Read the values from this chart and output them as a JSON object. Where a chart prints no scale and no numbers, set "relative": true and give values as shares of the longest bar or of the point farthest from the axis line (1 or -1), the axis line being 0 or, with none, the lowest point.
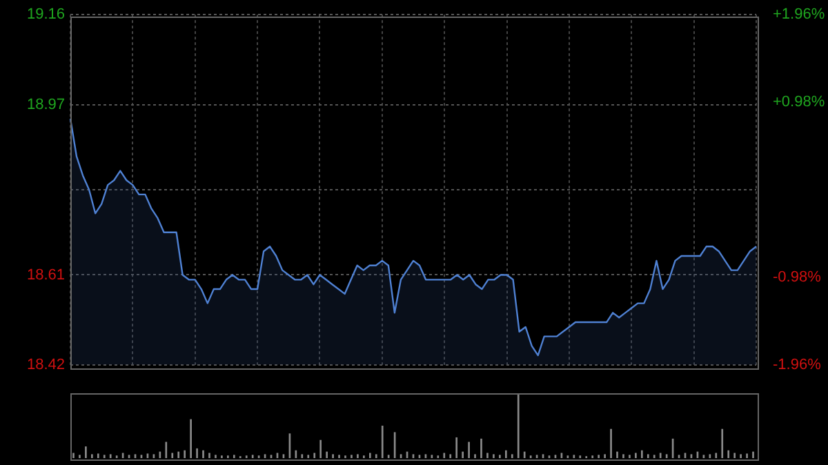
{
  "chart_data": [
    {
      "type": "area",
      "categories": [
        null,
        null,
        null,
        null,
        null,
        null,
        null,
        null,
        null,
        null,
        null,
        null,
        null,
        null,
        null,
        null,
        null,
        null,
        null,
        null,
        null,
        null,
        null,
        null,
        null,
        null,
        null,
        null,
        null,
        null,
        null,
        null,
        null,
        null,
        null,
        null,
        null,
        null,
        null,
        null,
        null,
        null,
        null,
        null,
        null,
        null,
        null,
        null,
        null,
        null,
        null,
        null,
        null,
        null,
        null,
        null,
        null,
        null,
        null,
        null,
        null,
        null,
        null,
        null,
        null,
        null,
        null,
        null,
        null,
        null,
        null,
        null,
        null,
        null,
        null,
        null,
        null,
        null,
        null,
        null,
        null,
        null,
        null,
        null,
        null,
        null,
        null,
        null,
        null,
        null,
        null,
        null,
        null,
        null,
        null,
        null,
        null,
        null,
        null,
        null,
        null,
        null,
        null,
        null,
        null,
        null,
        null,
        null,
        null,
        null,
        null
      ],
      "series": [
        {
          "color": "#4f81d3",
          "values": [
            18.94,
            18.86,
            18.82,
            18.79,
            18.74,
            18.76,
            18.8,
            18.81,
            18.83,
            18.81,
            18.8,
            18.78,
            18.78,
            18.75,
            18.73,
            18.7,
            18.7,
            18.7,
            18.61,
            18.6,
            18.6,
            18.58,
            18.55,
            18.58,
            18.58,
            18.6,
            18.61,
            18.6,
            18.6,
            18.58,
            18.58,
            18.66,
            18.67,
            18.65,
            18.62,
            18.61,
            18.6,
            18.6,
            18.61,
            18.59,
            18.61,
            18.6,
            18.59,
            18.58,
            18.57,
            18.6,
            18.63,
            18.62,
            18.63,
            18.63,
            18.64,
            18.63,
            18.53,
            18.6,
            18.62,
            18.64,
            18.63,
            18.6,
            18.6,
            18.6,
            18.6,
            18.6,
            18.61,
            18.6,
            18.61,
            18.59,
            18.58,
            18.6,
            18.6,
            18.61,
            18.61,
            18.6,
            18.49,
            18.5,
            18.46,
            18.44,
            18.48,
            18.48,
            18.48,
            18.49,
            18.5,
            18.51,
            18.51,
            18.51,
            18.51,
            18.51,
            18.51,
            18.53,
            18.52,
            18.53,
            18.54,
            18.55,
            18.55,
            18.58,
            18.64,
            18.58,
            18.6,
            18.64,
            18.65,
            18.65,
            18.65,
            18.65,
            18.67,
            18.67,
            18.66,
            18.64,
            18.62,
            18.62,
            18.64,
            18.66,
            18.67
          ]
        }
      ],
      "ylim": [
        18.42,
        19.16
      ],
      "yticks": [
        18.42,
        18.61,
        {
          "value": 18.79,
          "label": null
        },
        18.97,
        19.16
      ],
      "y2lim": [
        -1.96,
        1.96
      ],
      "y2ticks": [
        {
          "value": -1.96,
          "label": "-1.96%"
        },
        {
          "value": -0.98,
          "label": "-0.98%"
        },
        {
          "value": 0.98,
          "label": "+0.98%"
        },
        {
          "value": 1.96,
          "label": "+1.96%"
        }
      ],
      "grid": true,
      "tick_labels": "y"
    },
    {
      "type": "bar",
      "relative": true,
      "categories": [
        null,
        null,
        null,
        null,
        null,
        null,
        null,
        null,
        null,
        null,
        null,
        null,
        null,
        null,
        null,
        null,
        null,
        null,
        null,
        null,
        null,
        null,
        null,
        null,
        null,
        null,
        null,
        null,
        null,
        null,
        null,
        null,
        null,
        null,
        null,
        null,
        null,
        null,
        null,
        null,
        null,
        null,
        null,
        null,
        null,
        null,
        null,
        null,
        null,
        null,
        null,
        null,
        null,
        null,
        null,
        null,
        null,
        null,
        null,
        null,
        null,
        null,
        null,
        null,
        null,
        null,
        null,
        null,
        null,
        null,
        null,
        null,
        null,
        null,
        null,
        null,
        null,
        null,
        null,
        null,
        null,
        null,
        null,
        null,
        null,
        null,
        null,
        null,
        null,
        null,
        null,
        null,
        null,
        null,
        null,
        null,
        null,
        null,
        null,
        null,
        null,
        null,
        null,
        null,
        null,
        null,
        null,
        null,
        null,
        null,
        null
      ],
      "series": [
        {
          "color": "#8a8a8a",
          "values": [
            0.08,
            0.05,
            0.18,
            0.06,
            0.07,
            0.05,
            0.06,
            0.04,
            0.08,
            0.05,
            0.06,
            0.05,
            0.07,
            0.06,
            0.1,
            0.25,
            0.08,
            0.1,
            0.12,
            0.6,
            0.15,
            0.12,
            0.08,
            0.05,
            0.04,
            0.04,
            0.05,
            0.03,
            0.04,
            0.05,
            0.04,
            0.06,
            0.05,
            0.08,
            0.06,
            0.38,
            0.12,
            0.06,
            0.05,
            0.08,
            0.28,
            0.1,
            0.06,
            0.05,
            0.04,
            0.05,
            0.06,
            0.04,
            0.08,
            0.06,
            0.5,
            0.05,
            0.4,
            0.06,
            0.1,
            0.06,
            0.05,
            0.06,
            0.05,
            0.04,
            0.08,
            0.06,
            0.32,
            0.1,
            0.25,
            0.06,
            0.3,
            0.08,
            0.06,
            0.05,
            0.12,
            0.06,
            1,
            0.1,
            0.04,
            0.05,
            0.06,
            0.04,
            0.05,
            0.08,
            0.04,
            0.05,
            0.04,
            0.03,
            0.04,
            0.05,
            0.06,
            0.45,
            0.1,
            0.06,
            0.05,
            0.08,
            0.12,
            0.06,
            0.05,
            0.08,
            0.06,
            0.3,
            0.05,
            0.08,
            0.06,
            0.1,
            0.05,
            0.06,
            0.08,
            0.45,
            0.12,
            0.08,
            0.06,
            0.07,
            0.1
          ]
        }
      ]
    }
  ]
}
